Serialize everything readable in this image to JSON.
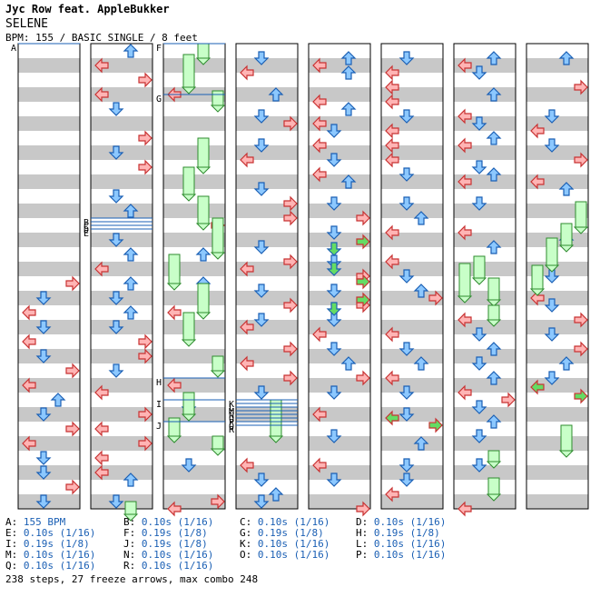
{
  "header": {
    "artist_line": "Jyc Row feat. AppleBukker",
    "song_title": "SELENE",
    "bpm_line": "BPM: 155 / BASIC SINGLE / 8 feet"
  },
  "colors": {
    "stripe": "#c8c8c8",
    "left_right_arrow": "#ffb4b4",
    "up_down_arrow": "#8cc8ff",
    "freeze": "#c8ffc8",
    "green_arrow": "#64dc64",
    "marker_line": "#1a5fb4"
  },
  "column_count": 8,
  "markers": [
    "A",
    "B",
    "C",
    "D",
    "E",
    "F",
    "G",
    "H",
    "I",
    "J",
    "K",
    "L",
    "M",
    "N",
    "O",
    "P",
    "Q",
    "R"
  ],
  "legend": [
    [
      {
        "label": "A:",
        "value": "155 BPM"
      },
      {
        "label": "B:",
        "value": "0.10s (1/16)"
      },
      {
        "label": "C:",
        "value": "0.10s (1/16)"
      },
      {
        "label": "D:",
        "value": "0.10s (1/16)"
      }
    ],
    [
      {
        "label": "E:",
        "value": "0.10s (1/16)"
      },
      {
        "label": "F:",
        "value": "0.19s (1/8)"
      },
      {
        "label": "G:",
        "value": "0.19s (1/8)"
      },
      {
        "label": "H:",
        "value": "0.19s (1/8)"
      }
    ],
    [
      {
        "label": "I:",
        "value": "0.19s (1/8)"
      },
      {
        "label": "J:",
        "value": "0.19s (1/8)"
      },
      {
        "label": "K:",
        "value": "0.10s (1/16)"
      },
      {
        "label": "L:",
        "value": "0.10s (1/16)"
      }
    ],
    [
      {
        "label": "M:",
        "value": "0.10s (1/16)"
      },
      {
        "label": "N:",
        "value": "0.10s (1/16)"
      },
      {
        "label": "O:",
        "value": "0.10s (1/16)"
      },
      {
        "label": "P:",
        "value": "0.10s (1/16)"
      }
    ],
    [
      {
        "label": "Q:",
        "value": "0.10s (1/16)"
      },
      {
        "label": "R:",
        "value": "0.10s (1/16)"
      }
    ]
  ],
  "stats": "238 steps, 27 freeze arrows, max combo 248"
}
